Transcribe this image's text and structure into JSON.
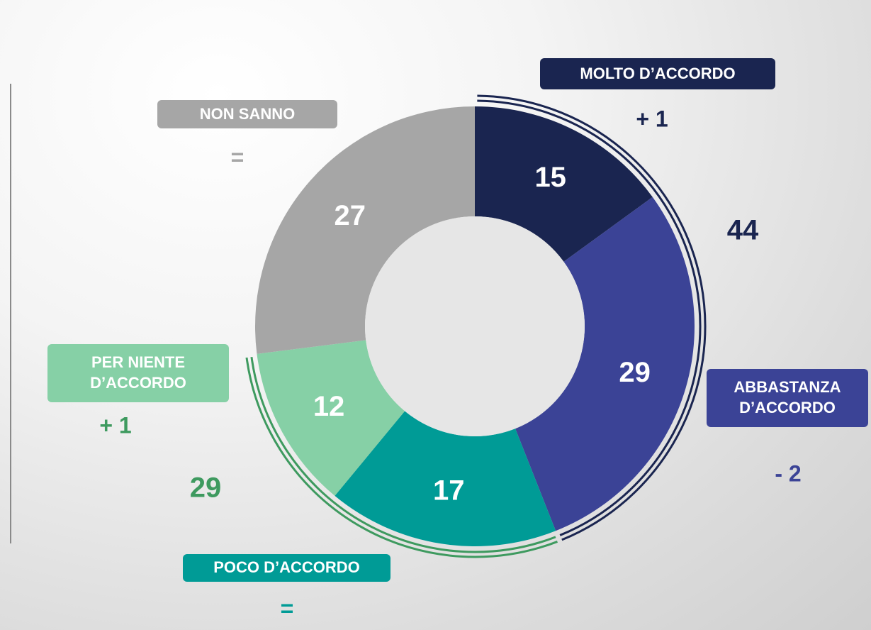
{
  "chart_data": {
    "type": "donut",
    "categories": [
      "MOLTO D’ACCORDO",
      "ABBASTANZA D’ACCORDO",
      "POCO D’ACCORDO",
      "PER NIENTE D’ACCORDO",
      "NON SANNO"
    ],
    "values": [
      15,
      29,
      17,
      12,
      27
    ],
    "colors": [
      "#1a2550",
      "#3b4396",
      "#009b96",
      "#86d0a6",
      "#a6a6a6"
    ],
    "changes": [
      "+ 1",
      "- 2",
      "=",
      "+ 1",
      "="
    ],
    "change_colors": [
      "#1a2550",
      "#3b4396",
      "#009b96",
      "#3e9a5f",
      "#a6a6a6"
    ],
    "groups": [
      {
        "value": 44,
        "color": "#1a2550",
        "categories": [
          "MOLTO D’ACCORDO",
          "ABBASTANZA D’ACCORDO"
        ]
      },
      {
        "value": 29,
        "color": "#3e9a5f",
        "categories": [
          "POCO D’ACCORDO",
          "PER NIENTE D’ACCORDO"
        ]
      }
    ]
  }
}
